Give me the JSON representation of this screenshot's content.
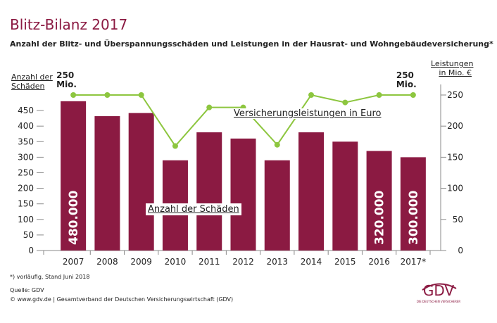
{
  "chart_data": {
    "type": "bar_line",
    "title": "Blitz-Bilanz 2017",
    "subtitle": "Anzahl der Blitz- und Überspannungsschäden und Leistungen in der Hausrat- und Wohngebäudeversicherung*",
    "ylabel": "Anzahl der Schäden",
    "y2label": "Leistungen in Mio. €",
    "categories": [
      "2007",
      "2008",
      "2009",
      "2010",
      "2011",
      "2012",
      "2013",
      "2014",
      "2015",
      "2016",
      "2017*"
    ],
    "series": [
      {
        "name": "Anzahl der Schäden",
        "type": "bar",
        "color": "#8b1a42",
        "values": [
          480,
          432,
          442,
          290,
          380,
          360,
          290,
          380,
          350,
          320,
          300
        ],
        "value_labels": [
          "480.000",
          null,
          null,
          null,
          null,
          null,
          null,
          null,
          null,
          "320.000",
          "300.000"
        ]
      },
      {
        "name": "Versicherungsleistungen in Euro",
        "type": "line",
        "axis": "y2",
        "color": "#8dc63f",
        "values": [
          250,
          250,
          250,
          168,
          230,
          230,
          170,
          250,
          238,
          250,
          250
        ],
        "value_labels": [
          "250 Mio.",
          null,
          null,
          null,
          null,
          null,
          null,
          null,
          null,
          null,
          "250 Mio."
        ]
      }
    ],
    "ylim": [
      0,
      500
    ],
    "yticks": [
      0,
      50,
      100,
      150,
      200,
      250,
      300,
      350,
      400,
      450
    ],
    "y2lim": [
      0,
      250
    ],
    "y2ticks": [
      0,
      50,
      100,
      150,
      200,
      250
    ],
    "footnote": "*) vorläufig, Stand Juni 2018",
    "source": "Quelle: GDV",
    "copyright": "© www.gdv.de | Gesamtverband der Deutschen Versicherungswirtschaft (GDV)",
    "logo": "GDV",
    "logo_tagline": "DIE DEUTSCHEN VERSICHERER"
  }
}
